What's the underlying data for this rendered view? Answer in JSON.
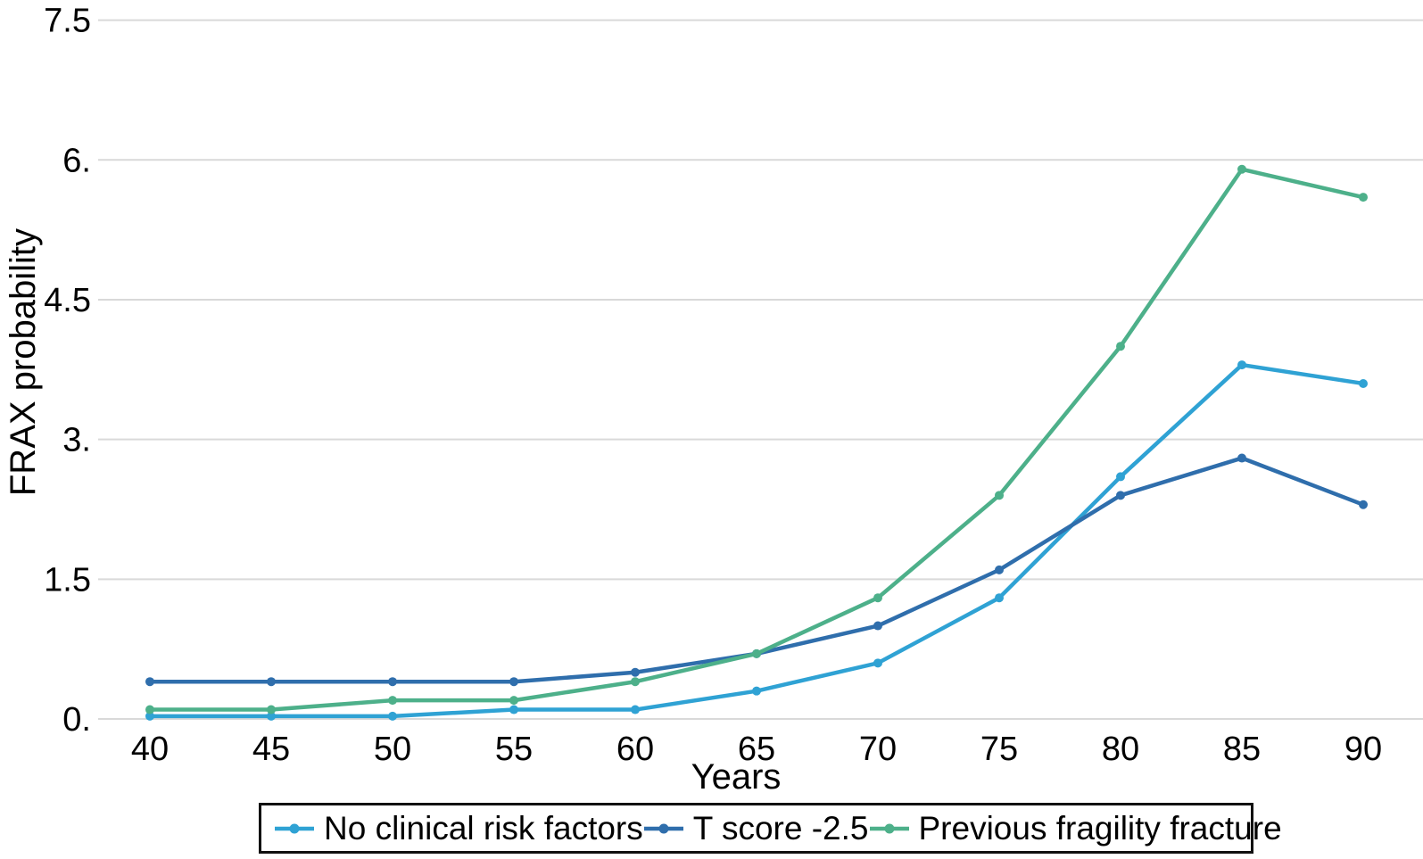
{
  "chart_data": {
    "type": "line",
    "title": "",
    "xlabel": "Years",
    "ylabel": "FRAX probability",
    "x": [
      40,
      45,
      50,
      55,
      60,
      65,
      70,
      75,
      80,
      85,
      90
    ],
    "xtick_labels": [
      "40",
      "45",
      "50",
      "55",
      "60",
      "65",
      "70",
      "75",
      "80",
      "85",
      "90"
    ],
    "ytick_values": [
      0,
      1.5,
      3,
      4.5,
      6,
      7.5
    ],
    "ytick_labels": [
      "0.",
      "1.5",
      "3.",
      "4.5",
      "6.",
      "7.5"
    ],
    "ylim": [
      0,
      7.5
    ],
    "grid": "horizontal-only",
    "legend_position": "bottom",
    "series": [
      {
        "name": "No clinical risk factors",
        "color": "#2FA2D4",
        "values": [
          0.03,
          0.03,
          0.03,
          0.1,
          0.1,
          0.3,
          0.6,
          1.3,
          2.6,
          3.8,
          3.6
        ]
      },
      {
        "name": "T score -2.5",
        "color": "#2F6EAC",
        "values": [
          0.4,
          0.4,
          0.4,
          0.4,
          0.5,
          0.7,
          1.0,
          1.6,
          2.4,
          2.8,
          2.3
        ]
      },
      {
        "name": "Previous fragility fracture",
        "color": "#4DB08A",
        "values": [
          0.1,
          0.1,
          0.2,
          0.2,
          0.4,
          0.7,
          1.3,
          2.4,
          4.0,
          5.9,
          5.6
        ]
      }
    ]
  },
  "colors": {
    "gridline": "#d9d9d9",
    "text": "#000000",
    "legend_border": "#111111",
    "background": "#ffffff"
  }
}
